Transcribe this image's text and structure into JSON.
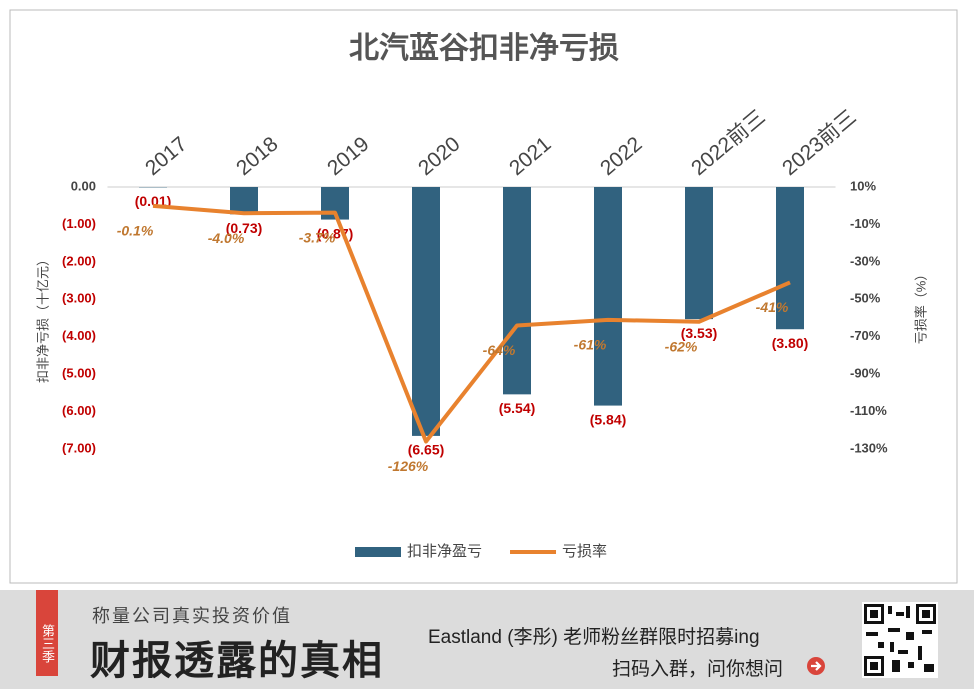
{
  "chart_data": {
    "type": "combo",
    "title": "北汽蓝谷扣非净亏损",
    "categories": [
      "2017",
      "2018",
      "2019",
      "2020",
      "2021",
      "2022",
      "2022前三",
      "2023前三"
    ],
    "series": [
      {
        "name": "扣非净盈亏",
        "type": "bar",
        "color": "#31627f",
        "values": [
          -0.01,
          -0.73,
          -0.87,
          -6.65,
          -5.54,
          -5.84,
          -3.53,
          -3.8
        ],
        "value_labels": [
          "(0.01)",
          "(0.73)",
          "(0.87)",
          "(6.65)",
          "(5.54)",
          "(5.84)",
          "(3.53)",
          "(3.80)"
        ]
      },
      {
        "name": "亏损率",
        "type": "line",
        "axis": "y2",
        "color": "#e8822e",
        "values": [
          -0.1,
          -4.0,
          -3.7,
          -126,
          -64,
          -61,
          -62,
          -41
        ],
        "value_labels": [
          "-0.1%",
          "-4.0%",
          "-3.7%",
          "-126%",
          "-64%",
          "-61%",
          "-62%",
          "-41%"
        ]
      }
    ],
    "ylabel": "扣非净亏损（十亿元）",
    "y2label": "亏损率（%）",
    "ylim": [
      -7,
      0
    ],
    "yticks": [
      {
        "value": 0,
        "label": "0.00"
      },
      {
        "value": -1,
        "label": "(1.00)"
      },
      {
        "value": -2,
        "label": "(2.00)"
      },
      {
        "value": -3,
        "label": "(3.00)"
      },
      {
        "value": -4,
        "label": "(4.00)"
      },
      {
        "value": -5,
        "label": "(5.00)"
      },
      {
        "value": -6,
        "label": "(6.00)"
      },
      {
        "value": -7,
        "label": "(7.00)"
      }
    ],
    "y2lim": [
      -130,
      10
    ],
    "y2ticks": [
      {
        "value": 10,
        "label": "10%"
      },
      {
        "value": -10,
        "label": "-10%"
      },
      {
        "value": -30,
        "label": "-30%"
      },
      {
        "value": -50,
        "label": "-50%"
      },
      {
        "value": -70,
        "label": "-70%"
      },
      {
        "value": -90,
        "label": "-90%"
      },
      {
        "value": -110,
        "label": "-110%"
      },
      {
        "value": -130,
        "label": "-130%"
      }
    ],
    "legend": "bottom"
  },
  "banner": {
    "badge": "第三季",
    "tagline": "称量公司真实投资价值",
    "headline": "财报透露的真相",
    "promo": "Eastland (李彤) 老师粉丝群限时招募ing",
    "cta": "扫码入群，问你想问"
  }
}
